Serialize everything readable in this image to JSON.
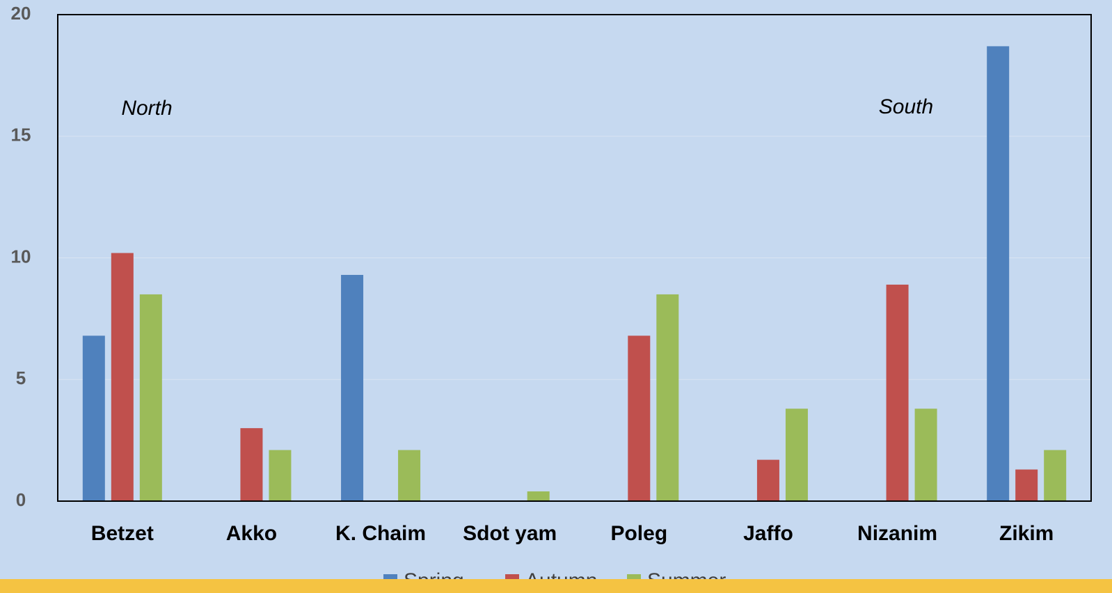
{
  "chart_data": {
    "type": "bar",
    "categories": [
      "Betzet",
      "Akko",
      "K. Chaim",
      "Sdot yam",
      "Poleg",
      "Jaffo",
      "Nizanim",
      "Zikim"
    ],
    "series": [
      {
        "name": "Spring",
        "color": "#4f81bd",
        "values": [
          6.8,
          0,
          9.3,
          0,
          0,
          0,
          0,
          18.7
        ]
      },
      {
        "name": "Autumn",
        "color": "#c0504d",
        "values": [
          10.2,
          3.0,
          0,
          0,
          6.8,
          1.7,
          8.9,
          1.3
        ]
      },
      {
        "name": "Summer",
        "color": "#9bbb59",
        "values": [
          8.5,
          2.1,
          2.1,
          0.4,
          8.5,
          3.8,
          3.8,
          2.1
        ]
      }
    ],
    "annotations": [
      "North",
      "South"
    ],
    "ylim": [
      0,
      20
    ],
    "yticks": [
      0,
      5,
      10,
      15,
      20
    ],
    "grid": true,
    "legend": "bottom"
  }
}
